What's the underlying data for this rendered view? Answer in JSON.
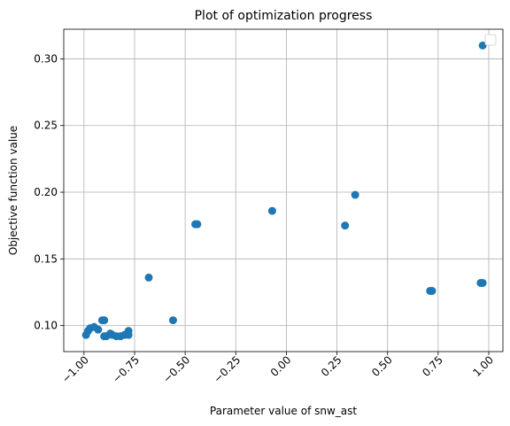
{
  "chart_data": {
    "type": "scatter",
    "title": "Plot of optimization progress",
    "xlabel": "Parameter value of snw_ast",
    "ylabel": "Objective function value",
    "xlim": [
      -1.1,
      1.07
    ],
    "ylim": [
      0.0805,
      0.3222
    ],
    "xticks": [
      -1.0,
      -0.75,
      -0.5,
      -0.25,
      0.0,
      0.25,
      0.5,
      0.75,
      1.0
    ],
    "xtick_labels": [
      "−1.00",
      "−0.75",
      "−0.50",
      "−0.25",
      "0.00",
      "0.25",
      "0.50",
      "0.75",
      "1.00"
    ],
    "yticks": [
      0.1,
      0.15,
      0.2,
      0.25,
      0.3
    ],
    "ytick_labels": [
      "0.10",
      "0.15",
      "0.20",
      "0.25",
      "0.30"
    ],
    "grid": true,
    "legend": "upper-right (empty)",
    "point_color": "#1f77b4",
    "points": [
      {
        "x": 0.97,
        "y": 0.31
      },
      {
        "x": 0.34,
        "y": 0.198
      },
      {
        "x": 0.29,
        "y": 0.175
      },
      {
        "x": -0.07,
        "y": 0.186
      },
      {
        "x": -0.45,
        "y": 0.176
      },
      {
        "x": -0.44,
        "y": 0.176
      },
      {
        "x": -0.68,
        "y": 0.136
      },
      {
        "x": -0.56,
        "y": 0.104
      },
      {
        "x": 0.71,
        "y": 0.126
      },
      {
        "x": 0.72,
        "y": 0.126
      },
      {
        "x": 0.96,
        "y": 0.132
      },
      {
        "x": 0.97,
        "y": 0.132
      },
      {
        "x": -0.9,
        "y": 0.104
      },
      {
        "x": -0.91,
        "y": 0.104
      },
      {
        "x": -0.95,
        "y": 0.099
      },
      {
        "x": -0.97,
        "y": 0.098
      },
      {
        "x": -0.93,
        "y": 0.097
      },
      {
        "x": -0.98,
        "y": 0.096
      },
      {
        "x": -0.99,
        "y": 0.093
      },
      {
        "x": -0.9,
        "y": 0.092
      },
      {
        "x": -0.89,
        "y": 0.092
      },
      {
        "x": -0.87,
        "y": 0.094
      },
      {
        "x": -0.86,
        "y": 0.093
      },
      {
        "x": -0.84,
        "y": 0.092
      },
      {
        "x": -0.82,
        "y": 0.092
      },
      {
        "x": -0.8,
        "y": 0.093
      },
      {
        "x": -0.78,
        "y": 0.096
      },
      {
        "x": -0.78,
        "y": 0.093
      }
    ]
  }
}
